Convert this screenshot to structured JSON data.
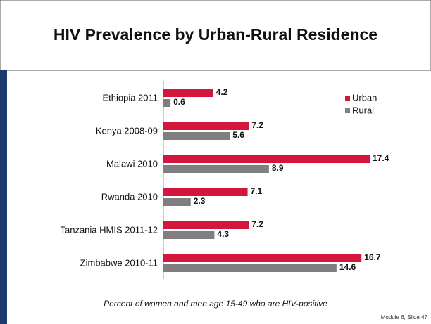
{
  "chart_data": {
    "type": "bar",
    "orientation": "horizontal",
    "title": "HIV Prevalence by Urban-Rural Residence",
    "categories": [
      "Ethiopia 2011",
      "Kenya 2008-09",
      "Malawi 2010",
      "Rwanda 2010",
      "Tanzania HMIS 2011-12",
      "Zimbabwe 2010-11"
    ],
    "series": [
      {
        "name": "Urban",
        "color": "#d4163e",
        "values": [
          4.2,
          7.2,
          17.4,
          7.1,
          7.2,
          16.7
        ]
      },
      {
        "name": "Rural",
        "color": "#7f7f7f",
        "values": [
          0.6,
          5.6,
          8.9,
          2.3,
          4.3,
          14.6
        ]
      }
    ],
    "legend": "upper right",
    "caption": "Percent of women and men age 15-49 who are HIV-positive",
    "footer": "Module 6, Slide 47"
  }
}
